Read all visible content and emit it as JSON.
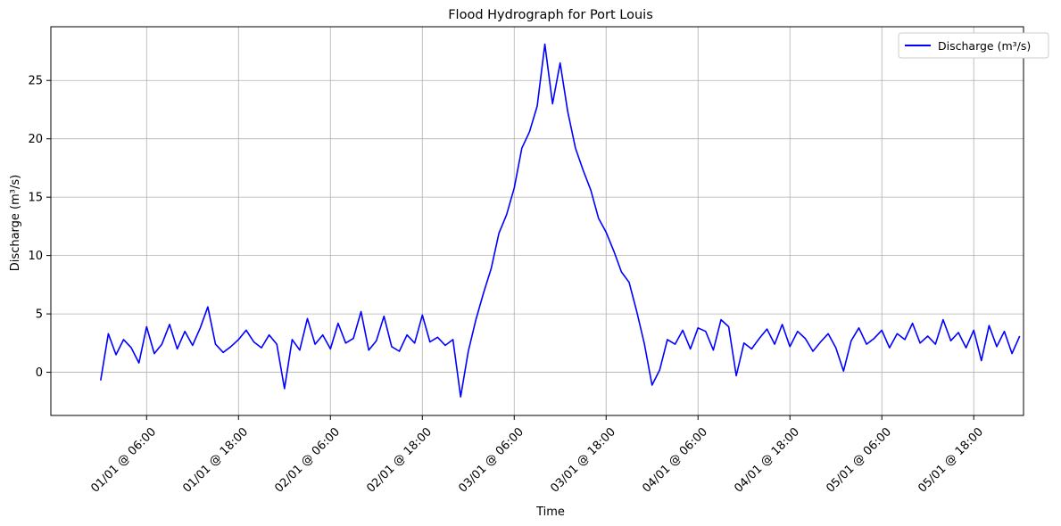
{
  "chart_data": {
    "type": "line",
    "title": "Flood Hydrograph for Port Louis",
    "xlabel": "Time",
    "ylabel": "Discharge (m³/s)",
    "x_ticks": [
      "01/01 @ 06:00",
      "01/01 @ 18:00",
      "02/01 @ 06:00",
      "02/01 @ 18:00",
      "03/01 @ 06:00",
      "03/01 @ 18:00",
      "04/01 @ 06:00",
      "04/01 @ 18:00",
      "05/01 @ 06:00",
      "05/01 @ 18:00"
    ],
    "y_ticks": [
      0,
      5,
      10,
      15,
      20,
      25
    ],
    "x_range_hours": [
      -6.5,
      120.5
    ],
    "ylim": [
      -3.7,
      29.6
    ],
    "grid": true,
    "legend_position": "top-right",
    "series": [
      {
        "name": "Discharge (m³/s)",
        "color": "#0000ff",
        "x_hours": [
          0,
          1,
          2,
          3,
          4,
          5,
          6,
          7,
          8,
          9,
          10,
          11,
          12,
          13,
          14,
          15,
          16,
          17,
          18,
          19,
          20,
          21,
          22,
          23,
          24,
          25,
          26,
          27,
          28,
          29,
          30,
          31,
          32,
          33,
          34,
          35,
          36,
          37,
          38,
          39,
          40,
          41,
          42,
          43,
          44,
          45,
          46,
          47,
          48,
          49,
          50,
          51,
          52,
          53,
          54,
          55,
          56,
          57,
          58,
          59,
          60,
          61,
          62,
          63,
          64,
          65,
          66,
          67,
          68,
          69,
          70,
          71,
          72,
          73,
          74,
          75,
          76,
          77,
          78,
          79,
          80,
          81,
          82,
          83,
          84,
          85,
          86,
          87,
          88,
          89,
          90,
          91,
          92,
          93,
          94,
          95,
          96,
          97,
          98,
          99,
          100,
          101,
          102,
          103,
          104,
          105,
          106,
          107,
          108,
          109,
          110,
          111,
          112,
          113,
          114,
          115,
          116,
          117,
          118,
          119,
          120
        ],
        "values": [
          -0.7,
          3.3,
          1.5,
          2.8,
          2.1,
          0.8,
          3.9,
          1.6,
          2.4,
          4.1,
          2.0,
          3.5,
          2.3,
          3.8,
          5.6,
          2.4,
          1.7,
          2.2,
          2.8,
          3.6,
          2.6,
          2.1,
          3.2,
          2.4,
          -1.4,
          2.8,
          1.9,
          4.6,
          2.4,
          3.2,
          2.0,
          4.2,
          2.5,
          2.9,
          5.2,
          1.9,
          2.7,
          4.8,
          2.2,
          1.8,
          3.2,
          2.5,
          4.9,
          2.6,
          3.0,
          2.3,
          2.8,
          -2.1,
          1.8,
          4.5,
          6.8,
          8.9,
          11.9,
          13.5,
          15.8,
          19.2,
          20.6,
          22.8,
          28.1,
          23.0,
          26.5,
          22.3,
          19.2,
          17.3,
          15.6,
          13.2,
          12.0,
          10.4,
          8.6,
          7.7,
          5.2,
          2.4,
          -1.1,
          0.2,
          2.8,
          2.4,
          3.6,
          2.0,
          3.8,
          3.5,
          1.9,
          4.5,
          3.9,
          -0.3,
          2.5,
          2.0,
          2.9,
          3.7,
          2.4,
          4.1,
          2.2,
          3.5,
          2.9,
          1.8,
          2.6,
          3.3,
          2.1,
          0.1,
          2.7,
          3.8,
          2.4,
          2.9,
          3.6,
          2.1,
          3.3,
          2.8,
          4.2,
          2.5,
          3.1,
          2.4,
          4.5,
          2.7,
          3.4,
          2.1,
          3.6,
          1.0,
          4.0,
          2.2,
          3.5,
          1.6,
          3.1
        ]
      }
    ]
  }
}
